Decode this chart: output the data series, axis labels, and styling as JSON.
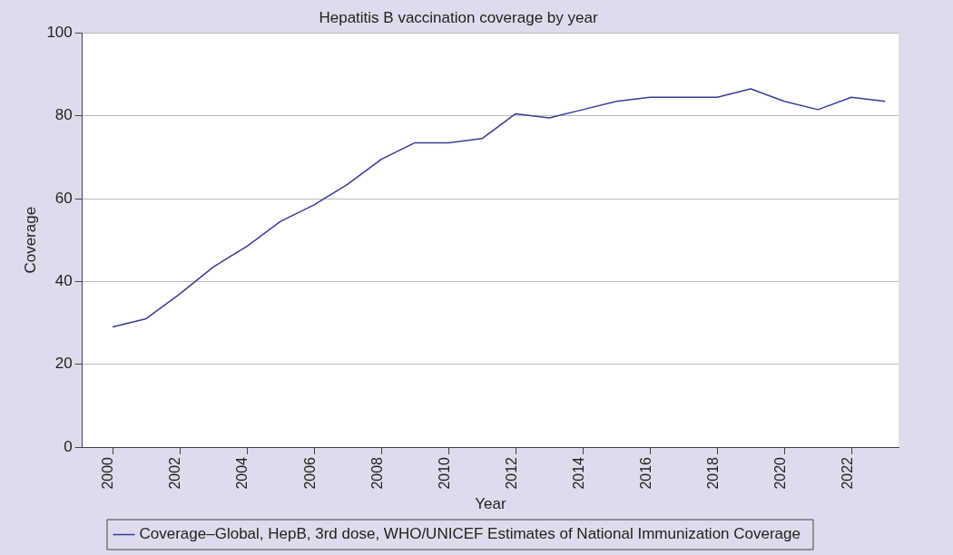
{
  "chart_data": {
    "type": "line",
    "title": "Hepatitis B vaccination coverage by year",
    "xlabel": "Year",
    "ylabel": "Coverage",
    "x": [
      2000,
      2001,
      2002,
      2003,
      2004,
      2005,
      2006,
      2007,
      2008,
      2009,
      2010,
      2011,
      2012,
      2013,
      2014,
      2015,
      2016,
      2017,
      2018,
      2019,
      2020,
      2021,
      2022,
      2023
    ],
    "series": [
      {
        "name": "Coverage–Global, HepB, 3rd dose, WHO/UNICEF Estimates of National Immunization Coverage",
        "color": "#3a3a9a",
        "values": [
          29,
          31,
          37,
          43.5,
          48.5,
          54.5,
          58.5,
          63.5,
          69.5,
          73.5,
          73.5,
          74.5,
          80.5,
          79.5,
          81.5,
          83.5,
          84.5,
          84.5,
          84.5,
          86.5,
          83.5,
          81.5,
          84.5,
          83.5
        ]
      }
    ],
    "xlim": [
      1999.1,
      2023.4
    ],
    "xticks": [
      2000,
      2002,
      2004,
      2006,
      2008,
      2010,
      2012,
      2014,
      2016,
      2018,
      2020,
      2022
    ],
    "ylim": [
      0,
      100
    ],
    "yticks": [
      0,
      20,
      40,
      60,
      80,
      100
    ],
    "grid": "y",
    "legend": "bottom",
    "marker": "none",
    "line_style": "solid"
  }
}
